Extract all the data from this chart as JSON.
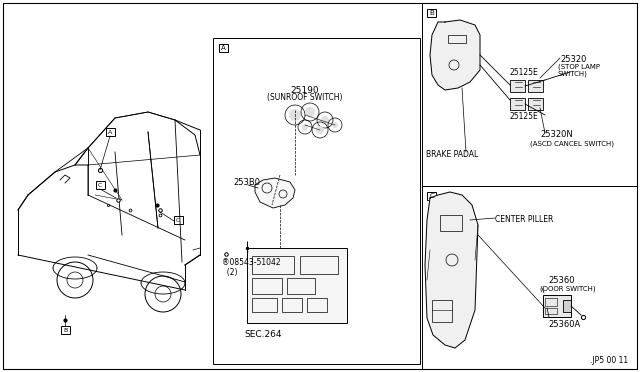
{
  "bg_color": "#ffffff",
  "line_color": "#000000",
  "fig_width": 6.4,
  "fig_height": 3.72,
  "dpi": 100,
  "labels": {
    "25190": "25190",
    "sunroof_switch": "(SUNROOF SWITCH)",
    "253B0": "253B0",
    "25320": "25320",
    "stop_lamp": "(STOP LAMP\nSWITCH)",
    "25125E_top": "25125E",
    "25125E_bot": "25125E",
    "25320N": "25320N",
    "ascd": "(ASCD CANCEL SWITCH)",
    "brake_padal": "BRAKE PADAL",
    "center_piller": "CENTER PILLER",
    "25360": "25360",
    "door_switch": "(DOOR SWITCH)",
    "25360A": "25360A",
    "sec264": "SEC.264",
    "bolt": "®08543-51042\n  (2)",
    "jp5": ".JP5 00 11"
  }
}
